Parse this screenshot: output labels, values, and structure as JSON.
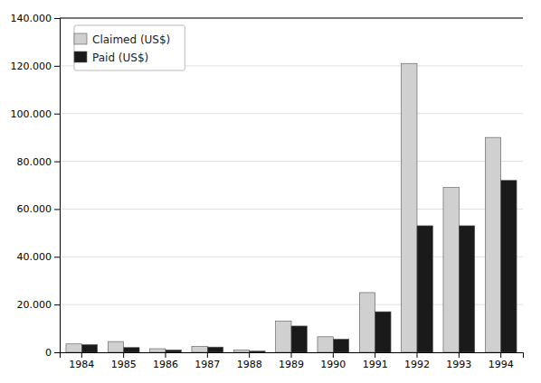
{
  "chart_data": {
    "type": "bar",
    "categories": [
      "1984",
      "1985",
      "1986",
      "1987",
      "1988",
      "1989",
      "1990",
      "1991",
      "1992",
      "1993",
      "1994"
    ],
    "series": [
      {
        "name": "Claimed (US$)",
        "color": "#d0d0d0",
        "values": [
          3500,
          4500,
          1500,
          2500,
          1000,
          13000,
          6500,
          25000,
          121000,
          69000,
          90000
        ]
      },
      {
        "name": "Paid (US$)",
        "color": "#1a1a1a",
        "values": [
          3200,
          2000,
          1000,
          2200,
          500,
          11000,
          5500,
          17000,
          53000,
          53000,
          72000
        ]
      }
    ],
    "ylim": [
      0,
      140000
    ],
    "yticks": [
      0,
      {
        "value": 20000,
        "label": "20.000"
      },
      {
        "value": 40000,
        "label": "40.000"
      },
      {
        "value": 60000,
        "label": "60.000"
      },
      {
        "value": 80000,
        "label": "80.000"
      },
      {
        "value": 100000,
        "label": "100.000"
      },
      {
        "value": 120000,
        "label": "120.000"
      },
      {
        "value": 140000,
        "label": "140.000"
      }
    ],
    "grid": true,
    "legend": "upper left"
  }
}
